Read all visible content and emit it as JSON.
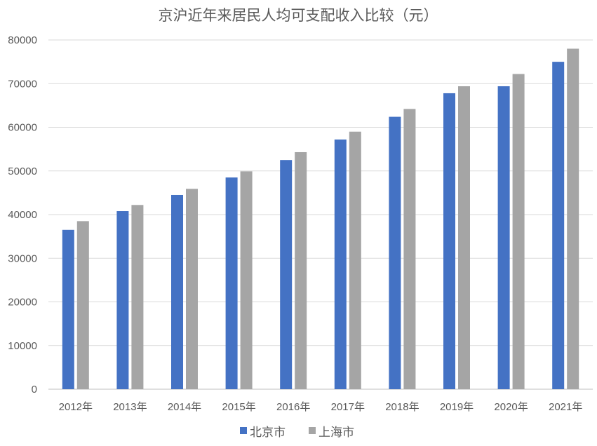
{
  "chart_data": {
    "type": "bar",
    "title": "京沪近年来居民人均可支配收入比较（元）",
    "categories": [
      "2012年",
      "2013年",
      "2014年",
      "2015年",
      "2016年",
      "2017年",
      "2018年",
      "2019年",
      "2020年",
      "2021年"
    ],
    "series": [
      {
        "name": "北京市",
        "color": "#4472C4",
        "values": [
          36500,
          40800,
          44500,
          48500,
          52500,
          57200,
          62400,
          67800,
          69400,
          75000
        ]
      },
      {
        "name": "上海市",
        "color": "#A5A5A5",
        "values": [
          38500,
          42200,
          45900,
          49900,
          54300,
          59000,
          64200,
          69400,
          72200,
          78000
        ]
      }
    ],
    "yticks": [
      0,
      10000,
      20000,
      30000,
      40000,
      50000,
      60000,
      70000,
      80000
    ],
    "ylim": [
      0,
      80000
    ],
    "xlabel": "",
    "ylabel": "",
    "grid": true,
    "legend": "bottom"
  }
}
